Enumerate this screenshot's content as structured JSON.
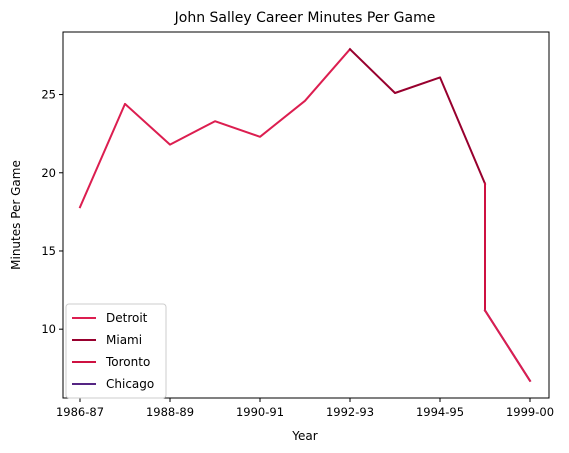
{
  "chart_data": {
    "type": "line",
    "title": "John Salley Career Minutes Per Game",
    "xlabel": "Year",
    "ylabel": "Minutes Per Game",
    "x_ticks": [
      "1986-87",
      "1988-89",
      "1990-91",
      "1992-93",
      "1994-95",
      "1999-00"
    ],
    "y_ticks": [
      10,
      15,
      20,
      25
    ],
    "ylim": [
      5.6,
      29.0
    ],
    "legend_position": "lower-left",
    "series": [
      {
        "name": "Detroit",
        "color": "#dc1e50",
        "points": [
          [
            0,
            17.8
          ],
          [
            1,
            24.4
          ],
          [
            2,
            21.8
          ],
          [
            3,
            23.3
          ],
          [
            4,
            22.3
          ],
          [
            5,
            24.6
          ],
          [
            6,
            27.9
          ]
        ]
      },
      {
        "name": "Miami",
        "color": "#98002e",
        "points": [
          [
            6,
            27.9
          ],
          [
            7,
            25.1
          ],
          [
            8,
            26.1
          ],
          [
            9,
            19.3
          ]
        ]
      },
      {
        "name": "Toronto",
        "color": "#ce1141",
        "points": [
          [
            9,
            19.3
          ],
          [
            9,
            11.2
          ]
        ]
      },
      {
        "name": "Chicago",
        "color": "#552583",
        "points": [
          [
            9,
            11.2
          ],
          [
            10,
            6.7
          ]
        ]
      },
      {
        "name": "",
        "color": "#dc1e50",
        "points": [
          [
            9,
            11.2
          ],
          [
            10,
            6.7
          ]
        ]
      }
    ]
  }
}
